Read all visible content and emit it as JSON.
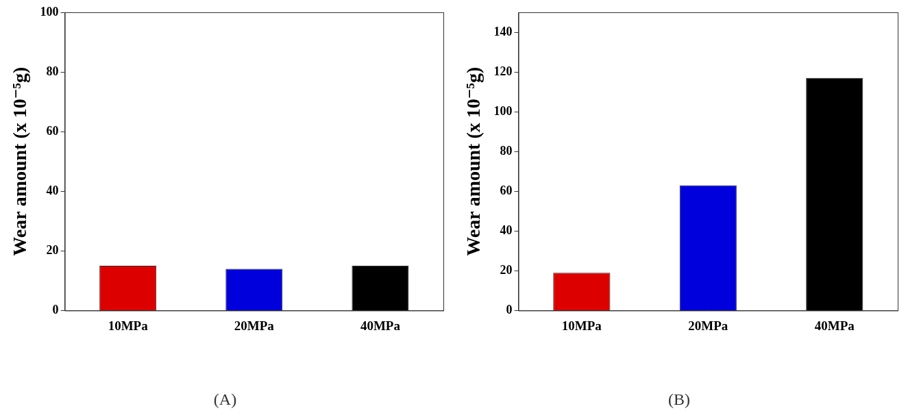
{
  "chart_data": [
    {
      "type": "bar",
      "title": "(A)",
      "ylabel": "Wear amount (x 10⁻⁵g)",
      "categories": [
        "10MPa",
        "20MPa",
        "40MPa"
      ],
      "values": [
        15,
        14,
        15
      ],
      "colors": [
        "#dd0000",
        "#0000dd",
        "#000000"
      ],
      "ylim": [
        0,
        100
      ],
      "yticks": [
        0,
        20,
        40,
        60,
        80,
        100
      ],
      "grid": false
    },
    {
      "type": "bar",
      "title": "(B)",
      "ylabel": "Wear amount (x 10⁻⁵g)",
      "categories": [
        "10MPa",
        "20MPa",
        "40MPa"
      ],
      "values": [
        19,
        63,
        117
      ],
      "colors": [
        "#dd0000",
        "#0000dd",
        "#000000"
      ],
      "ylim": [
        0,
        150
      ],
      "yticks": [
        0,
        20,
        40,
        60,
        80,
        100,
        120,
        140
      ],
      "grid": false
    }
  ]
}
